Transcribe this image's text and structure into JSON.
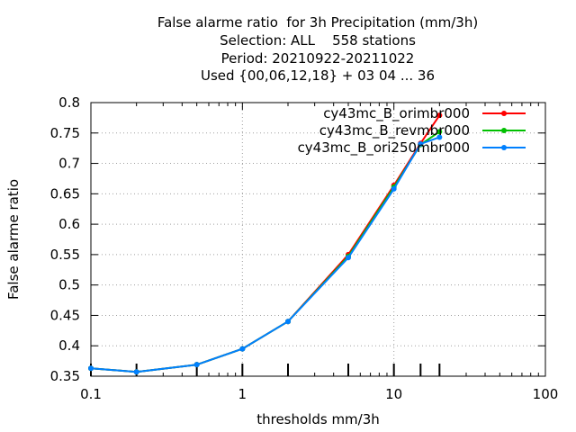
{
  "chart_data": {
    "type": "line",
    "title_lines": [
      "False alarme ratio  for 3h Precipitation (mm/3h)",
      "Selection: ALL    558 stations",
      "Period: 20210922-20211022",
      "Used {00,06,12,18} + 03 04 ... 36"
    ],
    "xlabel": "thresholds mm/3h",
    "ylabel": "False alarme ratio",
    "x_scale": "log",
    "xlim": [
      0.1,
      100
    ],
    "ylim": [
      0.35,
      0.8
    ],
    "x_ticks": [
      0.1,
      1,
      10,
      100
    ],
    "x_tick_labels": [
      "0.1",
      "1",
      "10",
      "100"
    ],
    "y_ticks": [
      0.35,
      0.4,
      0.45,
      0.5,
      0.55,
      0.6,
      0.65,
      0.7,
      0.75,
      0.8
    ],
    "y_tick_labels": [
      "0.35",
      "0.4",
      "0.45",
      "0.5",
      "0.55",
      "0.6",
      "0.65",
      "0.7",
      "0.75",
      "0.8"
    ],
    "threshold_markers": [
      0.1,
      0.2,
      0.5,
      1,
      2,
      5,
      10,
      15,
      20
    ],
    "grid": true,
    "legend_position": "top-right",
    "x": [
      0.1,
      0.2,
      0.5,
      1,
      2,
      5,
      10,
      15,
      20
    ],
    "series": [
      {
        "name": "cy43mc_B_orimbr000",
        "color": "#ff0000",
        "values": [
          0.363,
          0.357,
          0.369,
          0.395,
          0.44,
          0.55,
          0.664,
          0.733,
          0.779
        ]
      },
      {
        "name": "cy43mc_B_revmbr000",
        "color": "#00c000",
        "values": [
          0.363,
          0.357,
          0.369,
          0.395,
          0.44,
          0.547,
          0.661,
          0.731,
          0.752
        ]
      },
      {
        "name": "cy43mc_B_ori250mbr000",
        "color": "#0080ff",
        "values": [
          0.363,
          0.357,
          0.369,
          0.395,
          0.44,
          0.545,
          0.658,
          0.732,
          0.743
        ]
      }
    ]
  }
}
